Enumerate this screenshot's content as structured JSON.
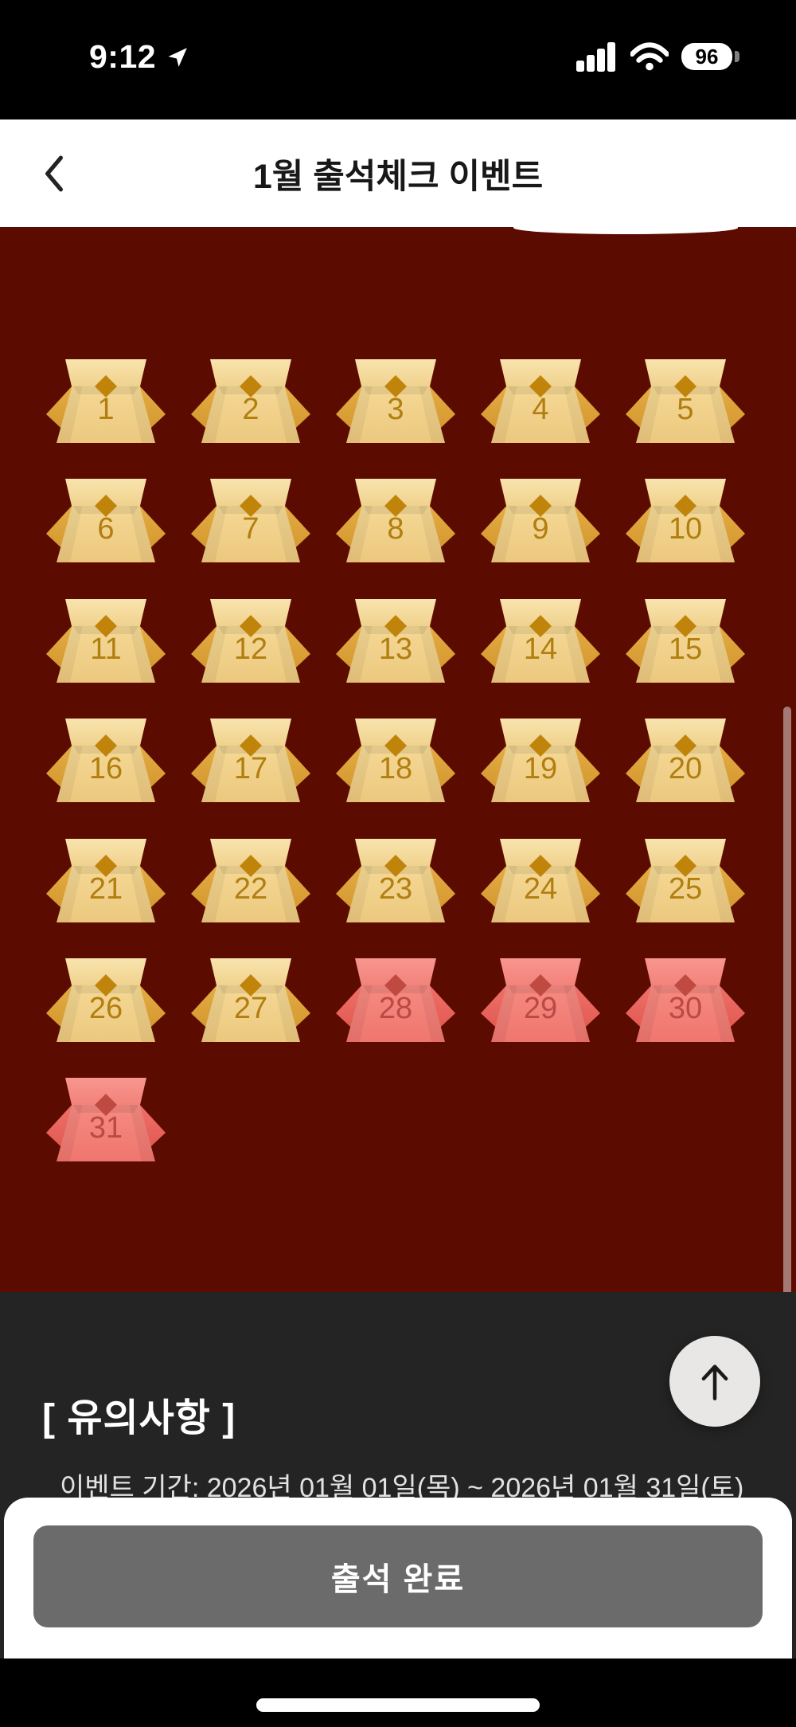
{
  "status_bar": {
    "time": "9:12",
    "battery": "96"
  },
  "header": {
    "title": "1월 출석체크 이벤트"
  },
  "calendar": {
    "days": [
      {
        "number": "1",
        "variant": "gold"
      },
      {
        "number": "2",
        "variant": "gold"
      },
      {
        "number": "3",
        "variant": "gold"
      },
      {
        "number": "4",
        "variant": "gold"
      },
      {
        "number": "5",
        "variant": "gold"
      },
      {
        "number": "6",
        "variant": "gold"
      },
      {
        "number": "7",
        "variant": "gold"
      },
      {
        "number": "8",
        "variant": "gold"
      },
      {
        "number": "9",
        "variant": "gold"
      },
      {
        "number": "10",
        "variant": "gold"
      },
      {
        "number": "11",
        "variant": "gold"
      },
      {
        "number": "12",
        "variant": "gold"
      },
      {
        "number": "13",
        "variant": "gold"
      },
      {
        "number": "14",
        "variant": "gold"
      },
      {
        "number": "15",
        "variant": "gold"
      },
      {
        "number": "16",
        "variant": "gold"
      },
      {
        "number": "17",
        "variant": "gold"
      },
      {
        "number": "18",
        "variant": "gold"
      },
      {
        "number": "19",
        "variant": "gold"
      },
      {
        "number": "20",
        "variant": "gold"
      },
      {
        "number": "21",
        "variant": "gold"
      },
      {
        "number": "22",
        "variant": "gold"
      },
      {
        "number": "23",
        "variant": "gold"
      },
      {
        "number": "24",
        "variant": "gold"
      },
      {
        "number": "25",
        "variant": "gold"
      },
      {
        "number": "26",
        "variant": "gold"
      },
      {
        "number": "27",
        "variant": "gold"
      },
      {
        "number": "28",
        "variant": "red"
      },
      {
        "number": "29",
        "variant": "red"
      },
      {
        "number": "30",
        "variant": "red"
      },
      {
        "number": "31",
        "variant": "red"
      }
    ]
  },
  "notes": {
    "heading": "[ 유의사항 ]",
    "period_line": "이벤트 기간: 2026년 01월 01일(목) ~ 2026년 01월 31일(토)"
  },
  "bottom_sheet": {
    "button_label": "출석 완료"
  },
  "colors": {
    "background_red": "#5C0B00",
    "notes_background": "#242424",
    "button_gray": "#6B6B6B",
    "gold": {
      "flap_top": "#F9E4AE",
      "flap_bottom": "#F0D28E",
      "body_top": "#F5D996",
      "body_bottom": "#ECC87E",
      "wing_top": "#E5AD45",
      "wing_bottom": "#D1952B",
      "accent": "#C1840B",
      "number": "#B17E10"
    },
    "red": {
      "flap_top": "#F8968F",
      "flap_bottom": "#F2837B",
      "body_top": "#F68B83",
      "body_bottom": "#EF766E",
      "wing_top": "#EF726A",
      "wing_bottom": "#DF564E",
      "accent": "#BF4A42",
      "number": "#BB4944"
    }
  }
}
